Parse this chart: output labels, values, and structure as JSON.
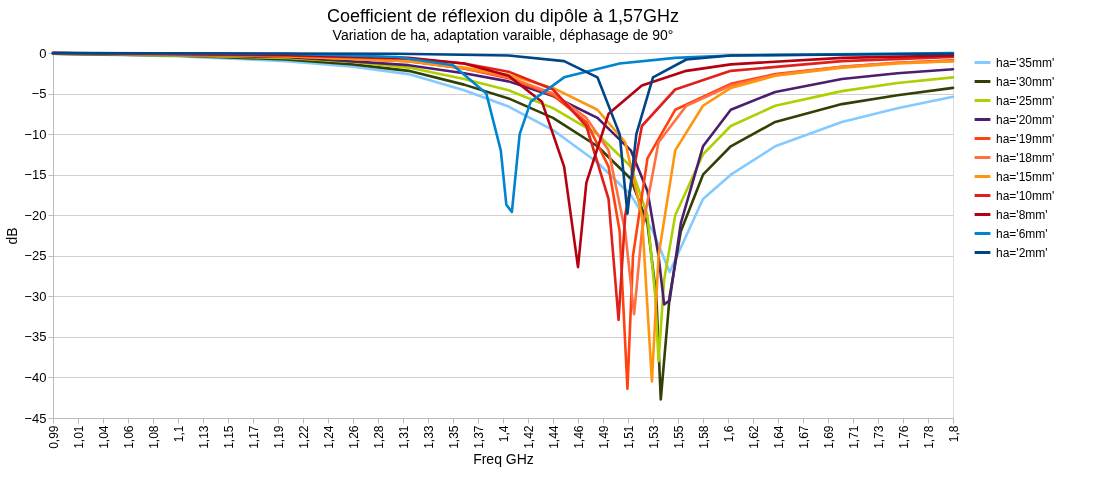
{
  "chart_data": {
    "type": "line",
    "title": "Coefficient de réflexion du dipôle à 1,57GHz",
    "subtitle": "Variation de ha, adaptation varaible, déphasage de 90°",
    "xlabel": "Freq GHz",
    "ylabel": "dB",
    "xlim": [
      0.99,
      1.8
    ],
    "ylim": [
      -45,
      0
    ],
    "xticks": [
      {
        "value": 0.99,
        "label": "0,99"
      },
      {
        "value": 1.0125,
        "label": "1,01"
      },
      {
        "value": 1.035,
        "label": "1,04"
      },
      {
        "value": 1.0575,
        "label": "1,06"
      },
      {
        "value": 1.08,
        "label": "1,08"
      },
      {
        "value": 1.1025,
        "label": "1,1"
      },
      {
        "value": 1.125,
        "label": "1,13"
      },
      {
        "value": 1.1475,
        "label": "1,15"
      },
      {
        "value": 1.17,
        "label": "1,17"
      },
      {
        "value": 1.1925,
        "label": "1,19"
      },
      {
        "value": 1.215,
        "label": "1,22"
      },
      {
        "value": 1.2375,
        "label": "1,24"
      },
      {
        "value": 1.26,
        "label": "1,26"
      },
      {
        "value": 1.2825,
        "label": "1,28"
      },
      {
        "value": 1.305,
        "label": "1,31"
      },
      {
        "value": 1.3275,
        "label": "1,33"
      },
      {
        "value": 1.35,
        "label": "1,35"
      },
      {
        "value": 1.3725,
        "label": "1,37"
      },
      {
        "value": 1.395,
        "label": "1,4"
      },
      {
        "value": 1.4175,
        "label": "1,42"
      },
      {
        "value": 1.44,
        "label": "1,44"
      },
      {
        "value": 1.4625,
        "label": "1,46"
      },
      {
        "value": 1.485,
        "label": "1,49"
      },
      {
        "value": 1.5075,
        "label": "1,51"
      },
      {
        "value": 1.53,
        "label": "1,53"
      },
      {
        "value": 1.5525,
        "label": "1,55"
      },
      {
        "value": 1.575,
        "label": "1,58"
      },
      {
        "value": 1.5975,
        "label": "1,6"
      },
      {
        "value": 1.62,
        "label": "1,62"
      },
      {
        "value": 1.6425,
        "label": "1,64"
      },
      {
        "value": 1.665,
        "label": "1,67"
      },
      {
        "value": 1.6875,
        "label": "1,69"
      },
      {
        "value": 1.71,
        "label": "1,71"
      },
      {
        "value": 1.7325,
        "label": "1,73"
      },
      {
        "value": 1.755,
        "label": "1,76"
      },
      {
        "value": 1.7775,
        "label": "1,78"
      },
      {
        "value": 1.8,
        "label": "1,8"
      }
    ],
    "yticks": [
      -45,
      -40,
      -35,
      -30,
      -25,
      -20,
      -15,
      -10,
      -5,
      0
    ],
    "grid": "y",
    "legend": "right",
    "line_style": "solid",
    "marker": "none",
    "series": [
      {
        "name": "ha='35mm'",
        "color": "#83caff",
        "x": [
          0.99,
          1.1,
          1.2,
          1.26,
          1.31,
          1.36,
          1.4,
          1.44,
          1.48,
          1.51,
          1.53,
          1.545,
          1.555,
          1.575,
          1.6,
          1.64,
          1.7,
          1.75,
          1.8
        ],
        "values": [
          -0.1,
          -0.4,
          -1.0,
          -1.7,
          -2.6,
          -4.6,
          -6.6,
          -9.5,
          -13.5,
          -17.5,
          -22,
          -27,
          -24,
          -18,
          -15,
          -11.5,
          -8.5,
          -6.8,
          -5.4
        ]
      },
      {
        "name": "ha='30mm'",
        "color": "#314004",
        "x": [
          0.99,
          1.1,
          1.2,
          1.26,
          1.31,
          1.36,
          1.4,
          1.44,
          1.48,
          1.51,
          1.525,
          1.533,
          1.537,
          1.545,
          1.555,
          1.575,
          1.6,
          1.64,
          1.7,
          1.75,
          1.8
        ],
        "values": [
          -0.1,
          -0.3,
          -0.8,
          -1.4,
          -2.2,
          -3.9,
          -5.6,
          -8,
          -11.5,
          -15.5,
          -21,
          -30,
          -42.7,
          -30,
          -22,
          -15,
          -11.5,
          -8.5,
          -6.3,
          -5.2,
          -4.3
        ]
      },
      {
        "name": "ha='25mm'",
        "color": "#aecf00",
        "x": [
          0.99,
          1.1,
          1.2,
          1.26,
          1.31,
          1.36,
          1.4,
          1.44,
          1.48,
          1.51,
          1.525,
          1.532,
          1.535,
          1.54,
          1.55,
          1.575,
          1.6,
          1.64,
          1.7,
          1.75,
          1.8
        ],
        "values": [
          -0.1,
          -0.3,
          -0.6,
          -1.1,
          -1.8,
          -3.2,
          -4.6,
          -6.8,
          -10,
          -14,
          -20,
          -30,
          -38,
          -28,
          -20,
          -12.5,
          -9,
          -6.5,
          -4.7,
          -3.7,
          -3.0
        ]
      },
      {
        "name": "ha='20mm'",
        "color": "#4b1f6f",
        "x": [
          0.99,
          1.1,
          1.2,
          1.31,
          1.36,
          1.4,
          1.44,
          1.48,
          1.51,
          1.525,
          1.535,
          1.54,
          1.545,
          1.555,
          1.575,
          1.6,
          1.64,
          1.7,
          1.75,
          1.8
        ],
        "values": [
          -0.1,
          -0.2,
          -0.5,
          -1.5,
          -2.5,
          -3.5,
          -5.3,
          -8,
          -12,
          -17,
          -25,
          -31,
          -30.5,
          -21,
          -11.5,
          -7,
          -4.8,
          -3.2,
          -2.5,
          -2.0
        ]
      },
      {
        "name": "ha='19mm'",
        "color": "#ff420e",
        "x": [
          0.99,
          1.1,
          1.2,
          1.31,
          1.36,
          1.4,
          1.44,
          1.47,
          1.49,
          1.5,
          1.507,
          1.512,
          1.525,
          1.55,
          1.6,
          1.64,
          1.7,
          1.75,
          1.8
        ],
        "values": [
          0,
          -0.2,
          -0.4,
          -1.0,
          -1.9,
          -3.1,
          -5.2,
          -8.5,
          -14,
          -22,
          -41.4,
          -25,
          -13,
          -7,
          -3.8,
          -2.6,
          -1.7,
          -1.2,
          -0.9
        ]
      },
      {
        "name": "ha='18mm'",
        "color": "#ff7043",
        "x": [
          0.99,
          1.1,
          1.2,
          1.31,
          1.36,
          1.4,
          1.44,
          1.47,
          1.49,
          1.505,
          1.513,
          1.52,
          1.535,
          1.56,
          1.6,
          1.64,
          1.7,
          1.75,
          1.8
        ],
        "values": [
          0,
          -0.2,
          -0.4,
          -1.0,
          -1.9,
          -3,
          -5,
          -8,
          -12,
          -22,
          -32.2,
          -22,
          -11,
          -6.5,
          -4,
          -2.7,
          -1.7,
          -1.2,
          -1.0
        ]
      },
      {
        "name": "ha='15mm'",
        "color": "#ff950e",
        "x": [
          0.99,
          1.1,
          1.2,
          1.31,
          1.36,
          1.4,
          1.44,
          1.48,
          1.505,
          1.52,
          1.529,
          1.535,
          1.55,
          1.575,
          1.6,
          1.64,
          1.7,
          1.75,
          1.8
        ],
        "values": [
          0,
          -0.2,
          -0.4,
          -1.0,
          -1.8,
          -2.7,
          -4.3,
          -7,
          -11,
          -20,
          -40.5,
          -25,
          -12,
          -6.5,
          -4.3,
          -2.8,
          -1.8,
          -1.3,
          -1.0
        ]
      },
      {
        "name": "ha='10mm'",
        "color": "#e0201b",
        "x": [
          0.99,
          1.2,
          1.31,
          1.36,
          1.4,
          1.44,
          1.47,
          1.49,
          1.499,
          1.505,
          1.52,
          1.55,
          1.6,
          1.7,
          1.8
        ],
        "values": [
          0,
          -0.3,
          -0.7,
          -1.3,
          -2.3,
          -4.5,
          -9,
          -18,
          -32.9,
          -20,
          -9,
          -4.5,
          -2.2,
          -1.0,
          -0.5
        ]
      },
      {
        "name": "ha='8mm'",
        "color": "#b5000f",
        "x": [
          0.99,
          1.2,
          1.31,
          1.36,
          1.4,
          1.43,
          1.45,
          1.4625,
          1.47,
          1.49,
          1.52,
          1.56,
          1.6,
          1.7,
          1.8
        ],
        "values": [
          0,
          -0.2,
          -0.6,
          -1.3,
          -2.8,
          -6,
          -14,
          -26.4,
          -16,
          -7.5,
          -4,
          -2.2,
          -1.4,
          -0.6,
          -0.3
        ]
      },
      {
        "name": "ha='6mm'",
        "color": "#0084d1",
        "x": [
          0.99,
          1.2,
          1.3,
          1.35,
          1.38,
          1.393,
          1.398,
          1.403,
          1.41,
          1.42,
          1.45,
          1.5,
          1.55,
          1.6,
          1.8
        ],
        "values": [
          0,
          -0.1,
          -0.5,
          -1.5,
          -5,
          -12,
          -18.7,
          -19.6,
          -10,
          -6,
          -3,
          -1.3,
          -0.6,
          -0.3,
          0
        ]
      },
      {
        "name": "ha='2mm'",
        "color": "#004586",
        "x": [
          0.99,
          1.3,
          1.4,
          1.45,
          1.48,
          1.5,
          1.507,
          1.515,
          1.53,
          1.56,
          1.6,
          1.8
        ],
        "values": [
          0,
          -0.1,
          -0.3,
          -1,
          -3,
          -10,
          -19.8,
          -10,
          -3,
          -0.8,
          -0.3,
          -0.1
        ]
      }
    ]
  }
}
